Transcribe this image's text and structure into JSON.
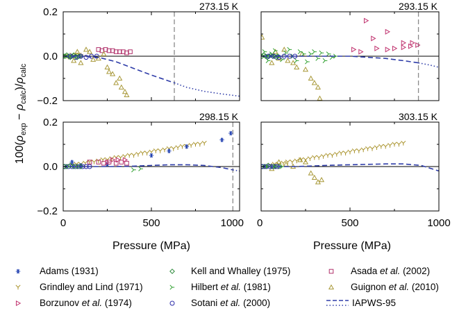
{
  "figure": {
    "ylabel": "100(ρexp − ρcalc)/ρcalc",
    "ylabel_parts": {
      "prefix": "100(",
      "rho1": "ρ",
      "sub1": "exp",
      "minus": " − ",
      "rho2": "ρ",
      "sub2": "calc",
      "mid": ")/",
      "rho3": "ρ",
      "sub3": "calc"
    },
    "xlabel": "Pressure (MPa)"
  },
  "colors": {
    "adams": "#1f3fb0",
    "grindley": "#a89128",
    "borzunov": "#c0326e",
    "kell": "#2c8a3a",
    "hilbert": "#2fa02f",
    "sotani": "#2a2aa8",
    "asada": "#b0306a",
    "guignon": "#a89838",
    "iapws": "#2e3ca8",
    "isobar": "#8a8a8a",
    "zero": "#000000"
  },
  "legend": {
    "items": [
      {
        "key": "adams",
        "label": "Adams (1931)",
        "symbol": "*"
      },
      {
        "key": "kell",
        "label": "Kell and Whalley (1975)",
        "symbol": "◇"
      },
      {
        "key": "asada",
        "label_pre": "Asada ",
        "label_em": "et al.",
        "label_post": " (2002)",
        "symbol": "□"
      },
      {
        "key": "grindley",
        "label": "Grindley and Lind (1971)",
        "symbol": "⋎"
      },
      {
        "key": "hilbert",
        "label_pre": "Hilbert ",
        "label_em": "et al.",
        "label_post": " (1981)",
        "symbol": "≻"
      },
      {
        "key": "guignon",
        "label_pre": "Guignon ",
        "label_em": "et al.",
        "label_post": " (2010)",
        "symbol": "△"
      },
      {
        "key": "borzunov",
        "label_pre": "Borzunov ",
        "label_em": "et al.",
        "label_post": " (1974)",
        "symbol": "▷"
      },
      {
        "key": "sotani",
        "label_pre": "Sotani ",
        "label_em": "et al.",
        "label_post": " (2000)",
        "symbol": "○"
      },
      {
        "key": "iapws",
        "label": "IAPWS-95",
        "symbol": "dashed"
      }
    ]
  },
  "chart_data": [
    {
      "type": "scatter",
      "panel": "top-left",
      "temperature_label": "273.15 K",
      "xlim": [
        0,
        1000
      ],
      "ylim": [
        -0.2,
        0.2
      ],
      "yticks": [
        0.2,
        0.0,
        -0.2
      ],
      "yticklabels": [
        "0.2",
        "0.0",
        "−0.2"
      ],
      "xticks": [
        0,
        500,
        1000
      ],
      "xticklabels": [],
      "isobar_x": 630,
      "iapws_curve": {
        "x": [
          0,
          100,
          200,
          300,
          400,
          500,
          630,
          700,
          800,
          900,
          1000
        ],
        "y": [
          0.0,
          0.0,
          -0.005,
          -0.025,
          -0.055,
          -0.085,
          -0.12,
          -0.14,
          -0.158,
          -0.17,
          -0.18
        ],
        "dotted_from": 630
      },
      "series": [
        {
          "key": "grindley",
          "x": [
            10,
            20,
            30,
            40,
            50,
            60,
            70,
            80,
            90,
            100
          ],
          "y": [
            0.0,
            0.0,
            -0.005,
            -0.005,
            0.005,
            0.0,
            0.005,
            0.0,
            0.005,
            0.0
          ]
        },
        {
          "key": "kell",
          "x": [
            2,
            10,
            20,
            30,
            40,
            50,
            60,
            70,
            80,
            90,
            100
          ],
          "y": [
            0.0,
            0.0,
            0.005,
            0.0,
            -0.005,
            0.0,
            0.005,
            0.0,
            -0.005,
            0.0,
            0.0
          ]
        },
        {
          "key": "sotani",
          "x": [
            40,
            70,
            100,
            130,
            160,
            190
          ],
          "y": [
            0.0,
            -0.005,
            0.0,
            -0.005,
            0.0,
            0.0
          ]
        },
        {
          "key": "asada",
          "x": [
            200,
            220,
            240,
            260,
            280,
            300,
            320,
            340,
            360,
            380
          ],
          "y": [
            0.03,
            0.025,
            0.03,
            0.025,
            0.025,
            0.02,
            0.02,
            0.02,
            0.015,
            0.02
          ]
        },
        {
          "key": "guignon",
          "x": [
            60,
            80,
            100,
            130,
            150,
            170,
            200,
            230,
            250,
            260,
            280,
            300,
            320,
            330,
            350,
            360
          ],
          "y": [
            -0.02,
            0.02,
            -0.03,
            0.03,
            0.02,
            -0.015,
            -0.01,
            0.01,
            -0.05,
            -0.07,
            -0.08,
            -0.12,
            -0.1,
            -0.14,
            -0.16,
            -0.175
          ]
        }
      ]
    },
    {
      "type": "scatter",
      "panel": "top-right",
      "temperature_label": "293.15 K",
      "xlim": [
        0,
        1000
      ],
      "ylim": [
        -0.2,
        0.2
      ],
      "yticks": [
        0.2,
        0.0,
        -0.2
      ],
      "yticklabels": [],
      "xticks": [
        0,
        500,
        1000
      ],
      "xticklabels": [],
      "isobar_x": 885,
      "iapws_curve": {
        "x": [
          0,
          100,
          200,
          300,
          400,
          500,
          600,
          700,
          800,
          885,
          950,
          1000
        ],
        "y": [
          0.0,
          0.0,
          0.0,
          0.0,
          0.0,
          0.0,
          -0.005,
          -0.01,
          -0.02,
          -0.03,
          -0.04,
          -0.05
        ],
        "dotted_from": 885
      },
      "series": [
        {
          "key": "guignon",
          "x": [
            5,
            60,
            80,
            100,
            130,
            150,
            180,
            200,
            230,
            250,
            280,
            300,
            320,
            330
          ],
          "y": [
            0.085,
            -0.03,
            0.02,
            -0.01,
            0.03,
            -0.02,
            -0.03,
            -0.05,
            0.01,
            -0.06,
            -0.1,
            -0.12,
            -0.14,
            -0.19
          ]
        },
        {
          "key": "hilbert",
          "x": [
            20,
            40,
            60,
            80,
            100,
            120,
            140,
            160,
            180,
            200,
            220,
            240,
            260,
            280,
            300,
            320,
            340,
            360,
            380,
            400,
            420
          ],
          "y": [
            0.02,
            -0.02,
            0.01,
            0.025,
            0.0,
            -0.015,
            0.015,
            0.03,
            0.0,
            -0.02,
            0.02,
            0.01,
            -0.025,
            0.01,
            0.02,
            -0.01,
            0.015,
            -0.02,
            0.01,
            -0.005,
            0.0
          ]
        },
        {
          "key": "kell",
          "x": [
            5,
            15,
            25,
            35,
            45,
            55,
            65,
            75,
            85,
            95
          ],
          "y": [
            0.0,
            0.005,
            0.0,
            -0.005,
            0.0,
            0.005,
            0.0,
            0.0,
            -0.005,
            0.0
          ]
        },
        {
          "key": "sotani",
          "x": [
            40,
            70,
            100,
            130,
            160,
            190
          ],
          "y": [
            0.0,
            0.0,
            -0.005,
            0.0,
            0.0,
            0.0
          ]
        },
        {
          "key": "borzunov",
          "x": [
            590,
            630,
            710,
            800,
            850,
            880
          ],
          "y": [
            0.16,
            0.08,
            0.11,
            0.06,
            0.06,
            0.05
          ]
        },
        {
          "key": "borzunov_a",
          "x": [
            520,
            560,
            650,
            710,
            750,
            800,
            840
          ],
          "y": [
            0.03,
            0.02,
            0.035,
            0.03,
            0.035,
            0.04,
            0.045
          ]
        }
      ]
    },
    {
      "type": "scatter",
      "panel": "bottom-left",
      "temperature_label": "298.15 K",
      "xlim": [
        0,
        1000
      ],
      "ylim": [
        -0.2,
        0.2
      ],
      "yticks": [
        0.2,
        0.0,
        -0.2
      ],
      "yticklabels": [
        "0.2",
        "0.0",
        "−0.2"
      ],
      "xticks": [
        0,
        500,
        1000
      ],
      "xticklabels": [
        "0",
        "500",
        "1000"
      ],
      "isobar_x": 962,
      "iapws_curve": {
        "x": [
          0,
          100,
          200,
          300,
          400,
          500,
          600,
          700,
          800,
          900,
          962,
          1000
        ],
        "y": [
          0.0,
          0.0,
          0.0,
          0.0,
          0.002,
          0.005,
          0.008,
          0.008,
          0.005,
          -0.005,
          -0.015,
          -0.02
        ],
        "dotted_from": 962
      },
      "series": [
        {
          "key": "grindley",
          "x": [
            50,
            75,
            100,
            125,
            150,
            175,
            200,
            225,
            250,
            275,
            300,
            325,
            350,
            375,
            400,
            425,
            450,
            475,
            500,
            525,
            550,
            575,
            600,
            625,
            650,
            675,
            700,
            725,
            750,
            775,
            800
          ],
          "y": [
            0.005,
            0.01,
            0.01,
            0.015,
            0.02,
            0.02,
            0.025,
            0.03,
            0.03,
            0.035,
            0.04,
            0.04,
            0.045,
            0.05,
            0.05,
            0.055,
            0.06,
            0.06,
            0.065,
            0.07,
            0.07,
            0.075,
            0.08,
            0.08,
            0.085,
            0.09,
            0.09,
            0.095,
            0.1,
            0.1,
            0.105
          ]
        },
        {
          "key": "adams",
          "x": [
            50,
            100,
            250,
            500,
            600,
            700,
            900,
            950
          ],
          "y": [
            0.02,
            0.005,
            0.01,
            0.05,
            0.07,
            0.09,
            0.12,
            0.15
          ]
        },
        {
          "key": "sotani",
          "x": [
            10,
            30,
            50,
            70,
            90,
            110,
            130,
            150
          ],
          "y": [
            0.0,
            0.0,
            0.0,
            0.0,
            0.0,
            0.0,
            0.0,
            0.0
          ]
        },
        {
          "key": "kell",
          "x": [
            5,
            20,
            40,
            60,
            80,
            100
          ],
          "y": [
            0.0,
            0.0,
            0.005,
            0.0,
            0.0,
            0.0
          ]
        },
        {
          "key": "asada",
          "x": [
            150,
            200,
            230,
            260,
            300,
            330,
            360
          ],
          "y": [
            0.02,
            0.02,
            0.015,
            0.02,
            0.015,
            0.02,
            0.015
          ]
        },
        {
          "key": "hilbert",
          "x": [
            400,
            440
          ],
          "y": [
            -0.015,
            -0.01
          ]
        },
        {
          "key": "borzunov_b",
          "x": [
            250,
            280,
            310,
            350
          ],
          "y": [
            0.02,
            0.03,
            0.03,
            0.03
          ]
        }
      ]
    },
    {
      "type": "scatter",
      "panel": "bottom-right",
      "temperature_label": "303.15 K",
      "xlim": [
        0,
        1000
      ],
      "ylim": [
        -0.2,
        0.2
      ],
      "yticks": [
        0.2,
        0.0,
        -0.2
      ],
      "yticklabels": [],
      "xticks": [
        0,
        500,
        1000
      ],
      "xticklabels": [
        "0",
        "500",
        "1000"
      ],
      "isobar_x": null,
      "iapws_curve": {
        "x": [
          0,
          100,
          200,
          300,
          400,
          500,
          600,
          700,
          800,
          900,
          1000
        ],
        "y": [
          0.0,
          0.0,
          0.0,
          0.003,
          0.006,
          0.008,
          0.01,
          0.012,
          0.012,
          0.005,
          -0.02
        ],
        "dotted_from": null
      },
      "series": [
        {
          "key": "grindley",
          "x": [
            50,
            75,
            100,
            125,
            150,
            175,
            200,
            225,
            250,
            275,
            300,
            325,
            350,
            375,
            400,
            425,
            450,
            475,
            500,
            525,
            550,
            575,
            600,
            625,
            650,
            675,
            700,
            725,
            750,
            775,
            800
          ],
          "y": [
            0.005,
            0.01,
            0.01,
            0.015,
            0.02,
            0.02,
            0.025,
            0.03,
            0.03,
            0.035,
            0.04,
            0.04,
            0.045,
            0.05,
            0.05,
            0.055,
            0.06,
            0.06,
            0.065,
            0.07,
            0.07,
            0.075,
            0.08,
            0.08,
            0.085,
            0.09,
            0.09,
            0.095,
            0.1,
            0.1,
            0.105
          ]
        },
        {
          "key": "guignon",
          "x": [
            20,
            60,
            100,
            140,
            180,
            220,
            250,
            280,
            300,
            320,
            340
          ],
          "y": [
            0.0,
            -0.01,
            0.02,
            0.01,
            0.0,
            0.03,
            0.02,
            -0.03,
            -0.05,
            -0.07,
            -0.06
          ]
        },
        {
          "key": "kell",
          "x": [
            5,
            20,
            40,
            60,
            80,
            100
          ],
          "y": [
            0.0,
            0.0,
            0.005,
            0.0,
            0.0,
            0.0
          ]
        },
        {
          "key": "sotani",
          "x": [
            10,
            30,
            50,
            70,
            90
          ],
          "y": [
            0.0,
            0.0,
            0.0,
            0.0,
            0.0
          ]
        },
        {
          "key": "hilbert",
          "x": [
            40,
            80,
            120
          ],
          "y": [
            0.0,
            0.0,
            0.0
          ]
        }
      ]
    }
  ]
}
